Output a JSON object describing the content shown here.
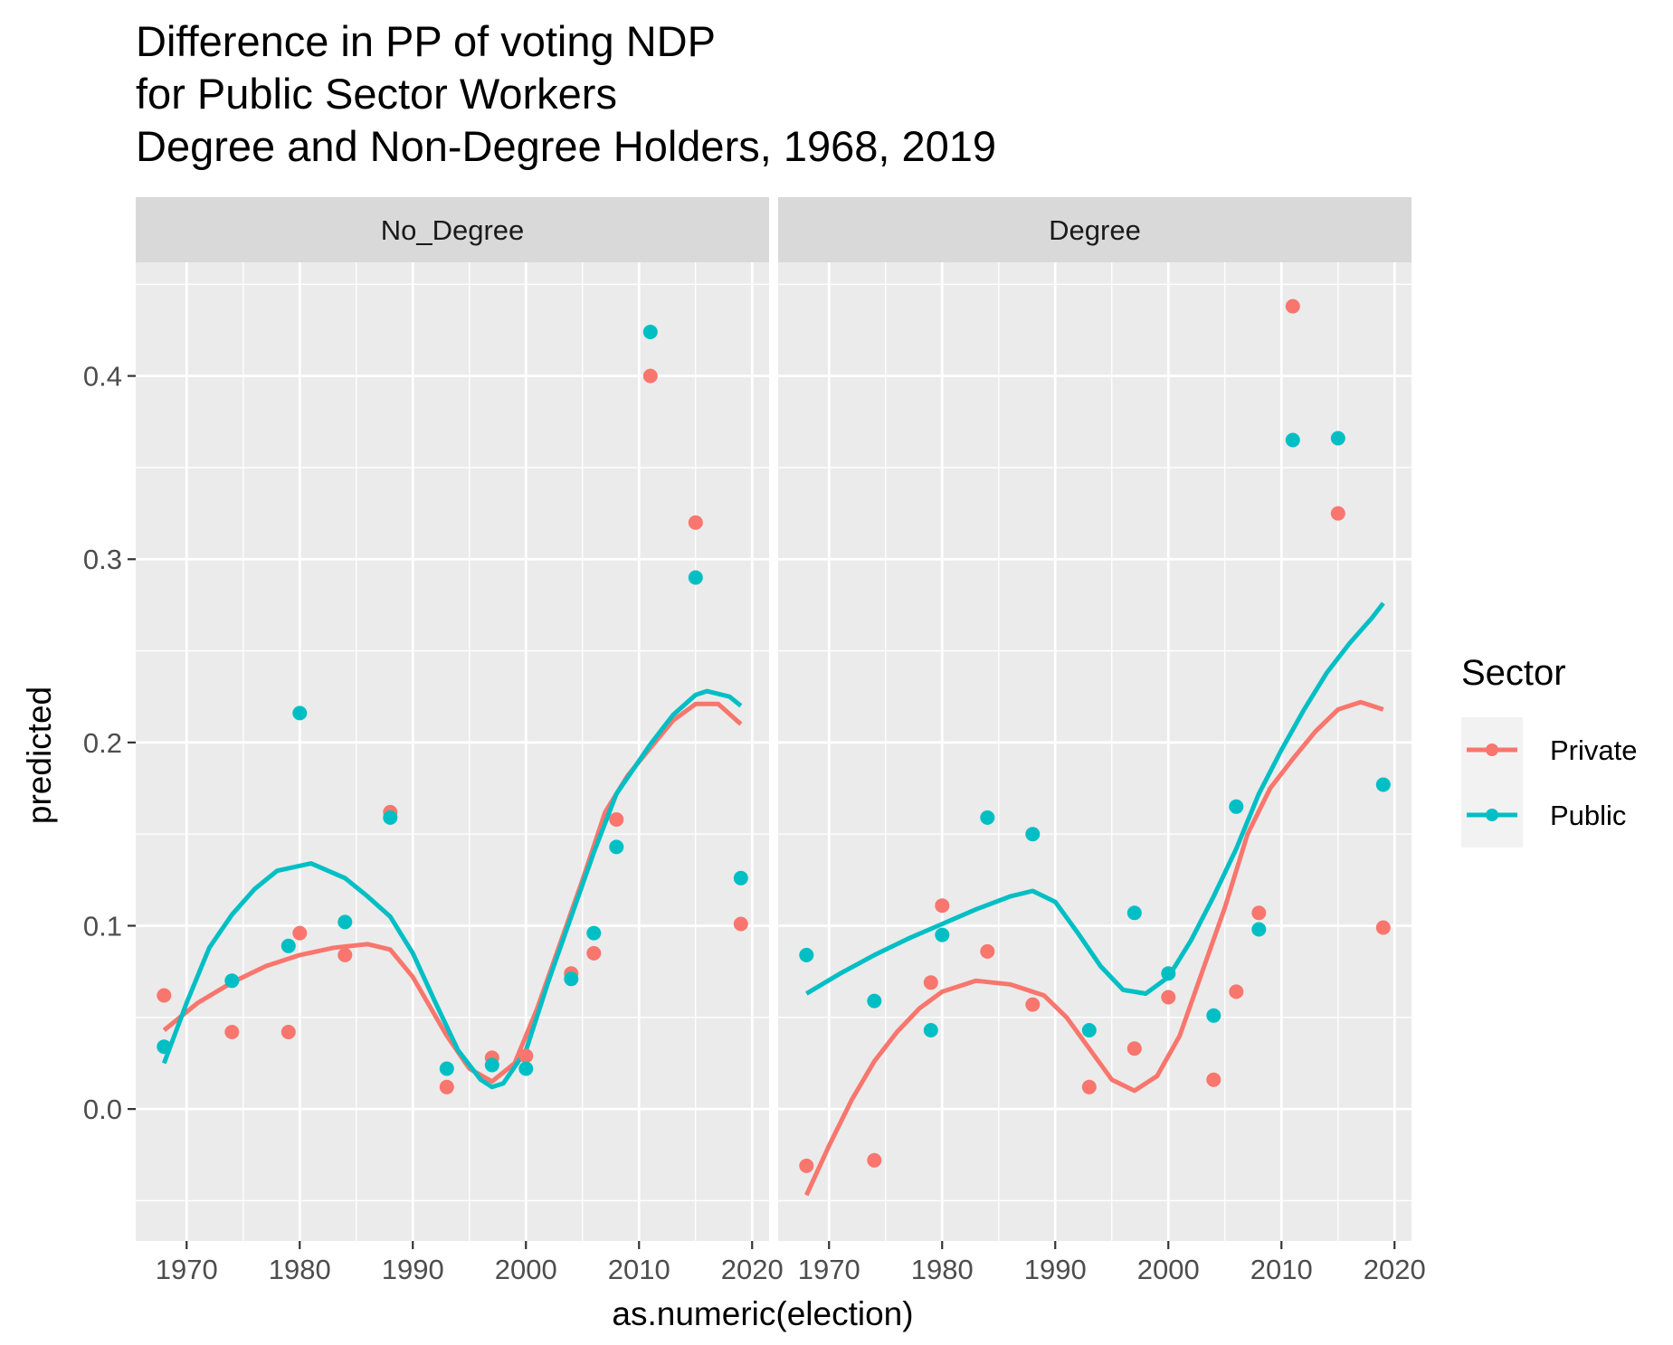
{
  "chart_data": {
    "type": "scatter",
    "title_lines": [
      "Difference in PP of voting NDP",
      "for Public Sector Workers",
      "Degree and Non-Degree Holders, 1968, 2019"
    ],
    "xlabel": "as.numeric(election)",
    "ylabel": "predicted",
    "xlim": [
      1965.5,
      2021.5
    ],
    "ylim": [
      -0.072,
      0.462
    ],
    "x_ticks": [
      "1970",
      "1980",
      "1990",
      "2000",
      "2010",
      "2020"
    ],
    "y_ticks": [
      "0.0",
      "0.1",
      "0.2",
      "0.3",
      "0.4"
    ],
    "grid": true,
    "legend": {
      "title": "Sector",
      "position": "right",
      "entries": [
        "Private",
        "Public"
      ]
    },
    "colors": {
      "Private": "#F8766D",
      "Public": "#00BFC4"
    },
    "panels": [
      {
        "label": "No_Degree",
        "series": [
          {
            "name": "Private",
            "points": [
              [
                1968,
                0.062
              ],
              [
                1974,
                0.042
              ],
              [
                1979,
                0.042
              ],
              [
                1980,
                0.096
              ],
              [
                1984,
                0.084
              ],
              [
                1988,
                0.162
              ],
              [
                1993,
                0.012
              ],
              [
                1997,
                0.028
              ],
              [
                2000,
                0.029
              ],
              [
                2004,
                0.074
              ],
              [
                2006,
                0.085
              ],
              [
                2008,
                0.158
              ],
              [
                2011,
                0.4
              ],
              [
                2015,
                0.32
              ],
              [
                2019,
                0.101
              ]
            ],
            "smooth": [
              [
                1968,
                0.043
              ],
              [
                1971,
                0.058
              ],
              [
                1974,
                0.069
              ],
              [
                1977,
                0.078
              ],
              [
                1980,
                0.084
              ],
              [
                1983,
                0.088
              ],
              [
                1986,
                0.09
              ],
              [
                1988,
                0.087
              ],
              [
                1990,
                0.072
              ],
              [
                1993,
                0.04
              ],
              [
                1995,
                0.022
              ],
              [
                1997,
                0.015
              ],
              [
                1999,
                0.025
              ],
              [
                2001,
                0.055
              ],
              [
                2003,
                0.09
              ],
              [
                2005,
                0.125
              ],
              [
                2007,
                0.162
              ],
              [
                2009,
                0.182
              ],
              [
                2011,
                0.197
              ],
              [
                2013,
                0.212
              ],
              [
                2015,
                0.221
              ],
              [
                2017,
                0.221
              ],
              [
                2019,
                0.21
              ]
            ]
          },
          {
            "name": "Public",
            "points": [
              [
                1968,
                0.034
              ],
              [
                1974,
                0.07
              ],
              [
                1979,
                0.089
              ],
              [
                1980,
                0.216
              ],
              [
                1984,
                0.102
              ],
              [
                1988,
                0.159
              ],
              [
                1993,
                0.022
              ],
              [
                1997,
                0.024
              ],
              [
                2000,
                0.022
              ],
              [
                2004,
                0.071
              ],
              [
                2006,
                0.096
              ],
              [
                2008,
                0.143
              ],
              [
                2011,
                0.424
              ],
              [
                2015,
                0.29
              ],
              [
                2019,
                0.126
              ]
            ],
            "smooth": [
              [
                1968,
                0.025
              ],
              [
                1970,
                0.058
              ],
              [
                1972,
                0.088
              ],
              [
                1974,
                0.106
              ],
              [
                1976,
                0.12
              ],
              [
                1978,
                0.13
              ],
              [
                1981,
                0.134
              ],
              [
                1984,
                0.126
              ],
              [
                1986,
                0.116
              ],
              [
                1988,
                0.105
              ],
              [
                1990,
                0.085
              ],
              [
                1992,
                0.058
              ],
              [
                1994,
                0.032
              ],
              [
                1996,
                0.016
              ],
              [
                1997,
                0.012
              ],
              [
                1998,
                0.014
              ],
              [
                2000,
                0.032
              ],
              [
                2002,
                0.07
              ],
              [
                2004,
                0.105
              ],
              [
                2006,
                0.14
              ],
              [
                2008,
                0.172
              ],
              [
                2011,
                0.199
              ],
              [
                2013,
                0.215
              ],
              [
                2015,
                0.226
              ],
              [
                2016,
                0.228
              ],
              [
                2018,
                0.225
              ],
              [
                2019,
                0.22
              ]
            ]
          }
        ]
      },
      {
        "label": "Degree",
        "series": [
          {
            "name": "Private",
            "points": [
              [
                1968,
                -0.031
              ],
              [
                1974,
                -0.028
              ],
              [
                1979,
                0.069
              ],
              [
                1980,
                0.111
              ],
              [
                1984,
                0.086
              ],
              [
                1988,
                0.057
              ],
              [
                1993,
                0.012
              ],
              [
                1997,
                0.033
              ],
              [
                2000,
                0.061
              ],
              [
                2004,
                0.016
              ],
              [
                2006,
                0.064
              ],
              [
                2008,
                0.107
              ],
              [
                2011,
                0.438
              ],
              [
                2015,
                0.325
              ],
              [
                2019,
                0.099
              ]
            ],
            "smooth": [
              [
                1968,
                -0.047
              ],
              [
                1970,
                -0.02
              ],
              [
                1972,
                0.005
              ],
              [
                1974,
                0.026
              ],
              [
                1976,
                0.042
              ],
              [
                1978,
                0.055
              ],
              [
                1980,
                0.064
              ],
              [
                1983,
                0.07
              ],
              [
                1986,
                0.068
              ],
              [
                1989,
                0.062
              ],
              [
                1991,
                0.05
              ],
              [
                1993,
                0.033
              ],
              [
                1995,
                0.016
              ],
              [
                1997,
                0.01
              ],
              [
                1999,
                0.018
              ],
              [
                2001,
                0.04
              ],
              [
                2003,
                0.075
              ],
              [
                2005,
                0.11
              ],
              [
                2007,
                0.15
              ],
              [
                2009,
                0.175
              ],
              [
                2011,
                0.191
              ],
              [
                2013,
                0.206
              ],
              [
                2015,
                0.218
              ],
              [
                2017,
                0.222
              ],
              [
                2019,
                0.218
              ]
            ]
          },
          {
            "name": "Public",
            "points": [
              [
                1968,
                0.084
              ],
              [
                1974,
                0.059
              ],
              [
                1979,
                0.043
              ],
              [
                1980,
                0.095
              ],
              [
                1984,
                0.159
              ],
              [
                1988,
                0.15
              ],
              [
                1993,
                0.043
              ],
              [
                1997,
                0.107
              ],
              [
                2000,
                0.074
              ],
              [
                2004,
                0.051
              ],
              [
                2006,
                0.165
              ],
              [
                2008,
                0.098
              ],
              [
                2011,
                0.365
              ],
              [
                2015,
                0.366
              ],
              [
                2019,
                0.177
              ]
            ],
            "smooth": [
              [
                1968,
                0.063
              ],
              [
                1971,
                0.074
              ],
              [
                1974,
                0.084
              ],
              [
                1977,
                0.093
              ],
              [
                1980,
                0.101
              ],
              [
                1983,
                0.109
              ],
              [
                1986,
                0.116
              ],
              [
                1988,
                0.119
              ],
              [
                1990,
                0.113
              ],
              [
                1992,
                0.096
              ],
              [
                1994,
                0.078
              ],
              [
                1996,
                0.065
              ],
              [
                1998,
                0.063
              ],
              [
                2000,
                0.072
              ],
              [
                2002,
                0.092
              ],
              [
                2004,
                0.116
              ],
              [
                2006,
                0.142
              ],
              [
                2008,
                0.172
              ],
              [
                2010,
                0.196
              ],
              [
                2012,
                0.218
              ],
              [
                2014,
                0.238
              ],
              [
                2016,
                0.254
              ],
              [
                2018,
                0.268
              ],
              [
                2019,
                0.276
              ]
            ]
          }
        ]
      }
    ]
  }
}
